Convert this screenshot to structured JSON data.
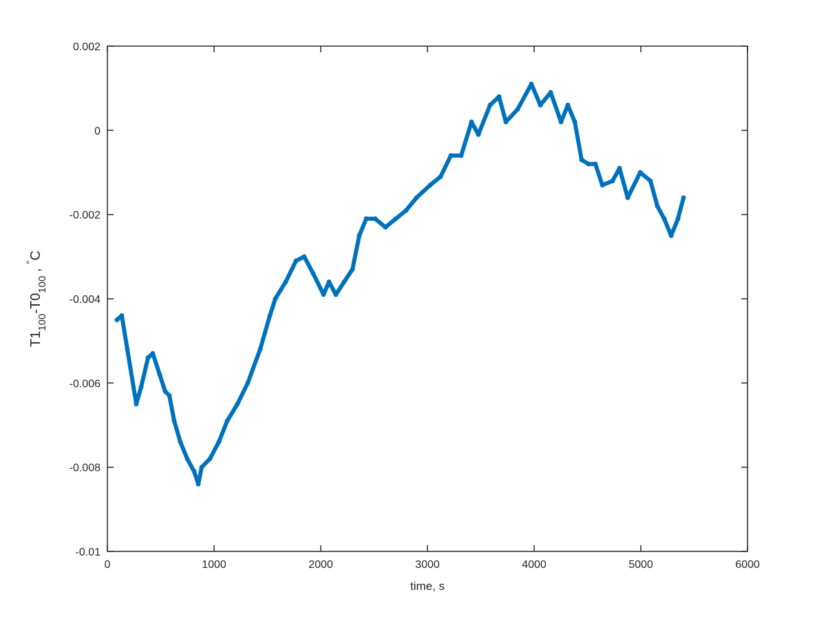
{
  "chart_data": {
    "type": "scatter",
    "title": "",
    "xlabel": "time, s",
    "ylabel": {
      "main1": "T1",
      "sub1": "100",
      "main2": "-T0",
      "sub2": "100",
      "tail": " , ",
      "deg": "°",
      "unit": "C"
    },
    "xlim": [
      0,
      6000
    ],
    "ylim": [
      -0.01,
      0.002
    ],
    "xticks": [
      0,
      1000,
      2000,
      3000,
      4000,
      5000,
      6000
    ],
    "xtick_labels": [
      "0",
      "1000",
      "2000",
      "3000",
      "4000",
      "5000",
      "6000"
    ],
    "yticks": [
      -0.01,
      -0.008,
      -0.006,
      -0.004,
      -0.002,
      0,
      0.002
    ],
    "ytick_labels": [
      "-0.01",
      "-0.008",
      "-0.006",
      "-0.004",
      "-0.002",
      "0",
      "0.002"
    ],
    "grid": false,
    "color": "#0072BD",
    "series": [
      {
        "x": [
          90,
          135,
          187,
          271,
          316,
          381,
          426,
          490,
          542,
          581,
          626,
          684,
          748,
          813,
          852,
          884,
          961,
          1045,
          1123,
          1219,
          1316,
          1432,
          1523,
          1574,
          1671,
          1768,
          1845,
          1929,
          2026,
          2077,
          2142,
          2219,
          2297,
          2361,
          2426,
          2510,
          2606,
          2703,
          2800,
          2897,
          3026,
          3123,
          3219,
          3316,
          3413,
          3477,
          3587,
          3671,
          3735,
          3845,
          3974,
          4058,
          4155,
          4252,
          4316,
          4381,
          4445,
          4510,
          4574,
          4639,
          4735,
          4800,
          4877,
          4994,
          5090,
          5155,
          5219,
          5284,
          5348,
          5400
        ],
        "y": [
          -0.0045,
          -0.0044,
          -0.0052,
          -0.0065,
          -0.0061,
          -0.0054,
          -0.0053,
          -0.0058,
          -0.0062,
          -0.0063,
          -0.0069,
          -0.0074,
          -0.0078,
          -0.0081,
          -0.0084,
          -0.008,
          -0.0078,
          -0.0074,
          -0.0069,
          -0.0065,
          -0.006,
          -0.0052,
          -0.0044,
          -0.004,
          -0.0036,
          -0.0031,
          -0.003,
          -0.0034,
          -0.0039,
          -0.0036,
          -0.0039,
          -0.0036,
          -0.0033,
          -0.0025,
          -0.0021,
          -0.0021,
          -0.0023,
          -0.0021,
          -0.0019,
          -0.0016,
          -0.0013,
          -0.0011,
          -0.0006,
          -0.0006,
          0.0002,
          -0.0001,
          0.0006,
          0.0008,
          0.0002,
          0.0005,
          0.0011,
          0.0006,
          0.0009,
          0.0002,
          0.0006,
          0.0002,
          -0.0007,
          -0.0008,
          -0.0008,
          -0.0013,
          -0.0012,
          -0.0009,
          -0.0016,
          -0.001,
          -0.0012,
          -0.0018,
          -0.0021,
          -0.0025,
          -0.0021,
          -0.0016
        ]
      }
    ]
  }
}
